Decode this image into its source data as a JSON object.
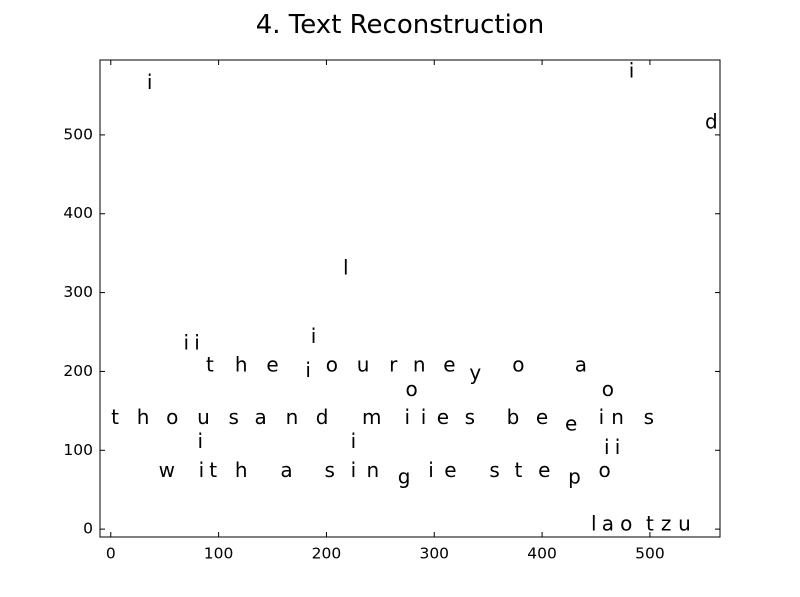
{
  "chart_data": {
    "type": "scatter",
    "title": "4. Text Reconstruction",
    "xlabel": "",
    "ylabel": "",
    "xlim": [
      -10,
      565
    ],
    "ylim": [
      -10,
      595
    ],
    "grid": false,
    "xticks": [
      0,
      100,
      200,
      300,
      400,
      500
    ],
    "yticks": [
      0,
      100,
      200,
      300,
      400,
      500
    ],
    "xtick_labels": [
      "0",
      "100",
      "200",
      "300",
      "400",
      "500"
    ],
    "ytick_labels": [
      "0",
      "100",
      "200",
      "300",
      "400",
      "500"
    ],
    "points": [
      {
        "x": 36,
        "y": 565,
        "text": "i"
      },
      {
        "x": 483,
        "y": 580,
        "text": "i"
      },
      {
        "x": 557,
        "y": 515,
        "text": "d"
      },
      {
        "x": 218,
        "y": 330,
        "text": "l"
      },
      {
        "x": 188,
        "y": 243,
        "text": "i"
      },
      {
        "x": 70,
        "y": 235,
        "text": "i"
      },
      {
        "x": 80,
        "y": 235,
        "text": "i"
      },
      {
        "x": 92,
        "y": 207,
        "text": "t"
      },
      {
        "x": 121,
        "y": 207,
        "text": "h"
      },
      {
        "x": 150,
        "y": 207,
        "text": "e"
      },
      {
        "x": 183,
        "y": 200,
        "text": "i"
      },
      {
        "x": 205,
        "y": 207,
        "text": "o"
      },
      {
        "x": 234,
        "y": 207,
        "text": "u"
      },
      {
        "x": 262,
        "y": 207,
        "text": "r"
      },
      {
        "x": 286,
        "y": 207,
        "text": "n"
      },
      {
        "x": 314,
        "y": 207,
        "text": "e"
      },
      {
        "x": 338,
        "y": 197,
        "text": "y"
      },
      {
        "x": 378,
        "y": 207,
        "text": "o"
      },
      {
        "x": 436,
        "y": 207,
        "text": "a"
      },
      {
        "x": 279,
        "y": 176,
        "text": "o"
      },
      {
        "x": 461,
        "y": 176,
        "text": "o"
      },
      {
        "x": 4,
        "y": 140,
        "text": "t"
      },
      {
        "x": 30,
        "y": 140,
        "text": "h"
      },
      {
        "x": 57,
        "y": 140,
        "text": "o"
      },
      {
        "x": 86,
        "y": 140,
        "text": "u"
      },
      {
        "x": 114,
        "y": 140,
        "text": "s"
      },
      {
        "x": 139,
        "y": 140,
        "text": "a"
      },
      {
        "x": 168,
        "y": 140,
        "text": "n"
      },
      {
        "x": 196,
        "y": 140,
        "text": "d"
      },
      {
        "x": 242,
        "y": 140,
        "text": "m"
      },
      {
        "x": 275,
        "y": 140,
        "text": "i"
      },
      {
        "x": 290,
        "y": 140,
        "text": "i"
      },
      {
        "x": 308,
        "y": 140,
        "text": "e"
      },
      {
        "x": 333,
        "y": 140,
        "text": "s"
      },
      {
        "x": 373,
        "y": 140,
        "text": "b"
      },
      {
        "x": 400,
        "y": 140,
        "text": "e"
      },
      {
        "x": 427,
        "y": 132,
        "text": "e"
      },
      {
        "x": 455,
        "y": 140,
        "text": "i"
      },
      {
        "x": 470,
        "y": 140,
        "text": "n"
      },
      {
        "x": 499,
        "y": 140,
        "text": "s"
      },
      {
        "x": 83,
        "y": 110,
        "text": "i"
      },
      {
        "x": 225,
        "y": 110,
        "text": "i"
      },
      {
        "x": 460,
        "y": 102,
        "text": "i"
      },
      {
        "x": 470,
        "y": 102,
        "text": "i"
      },
      {
        "x": 52,
        "y": 73,
        "text": "w"
      },
      {
        "x": 84,
        "y": 73,
        "text": "i"
      },
      {
        "x": 95,
        "y": 73,
        "text": "t"
      },
      {
        "x": 121,
        "y": 73,
        "text": "h"
      },
      {
        "x": 163,
        "y": 73,
        "text": "a"
      },
      {
        "x": 203,
        "y": 73,
        "text": "s"
      },
      {
        "x": 225,
        "y": 73,
        "text": "i"
      },
      {
        "x": 243,
        "y": 73,
        "text": "n"
      },
      {
        "x": 272,
        "y": 65,
        "text": "g"
      },
      {
        "x": 297,
        "y": 73,
        "text": "i"
      },
      {
        "x": 315,
        "y": 73,
        "text": "e"
      },
      {
        "x": 356,
        "y": 73,
        "text": "s"
      },
      {
        "x": 378,
        "y": 73,
        "text": "t"
      },
      {
        "x": 402,
        "y": 73,
        "text": "e"
      },
      {
        "x": 430,
        "y": 65,
        "text": "p"
      },
      {
        "x": 458,
        "y": 73,
        "text": "o"
      },
      {
        "x": 448,
        "y": 5,
        "text": "l"
      },
      {
        "x": 461,
        "y": 5,
        "text": "a"
      },
      {
        "x": 478,
        "y": 5,
        "text": "o"
      },
      {
        "x": 500,
        "y": 5,
        "text": "t"
      },
      {
        "x": 515,
        "y": 5,
        "text": "z"
      },
      {
        "x": 532,
        "y": 5,
        "text": "u"
      }
    ]
  }
}
